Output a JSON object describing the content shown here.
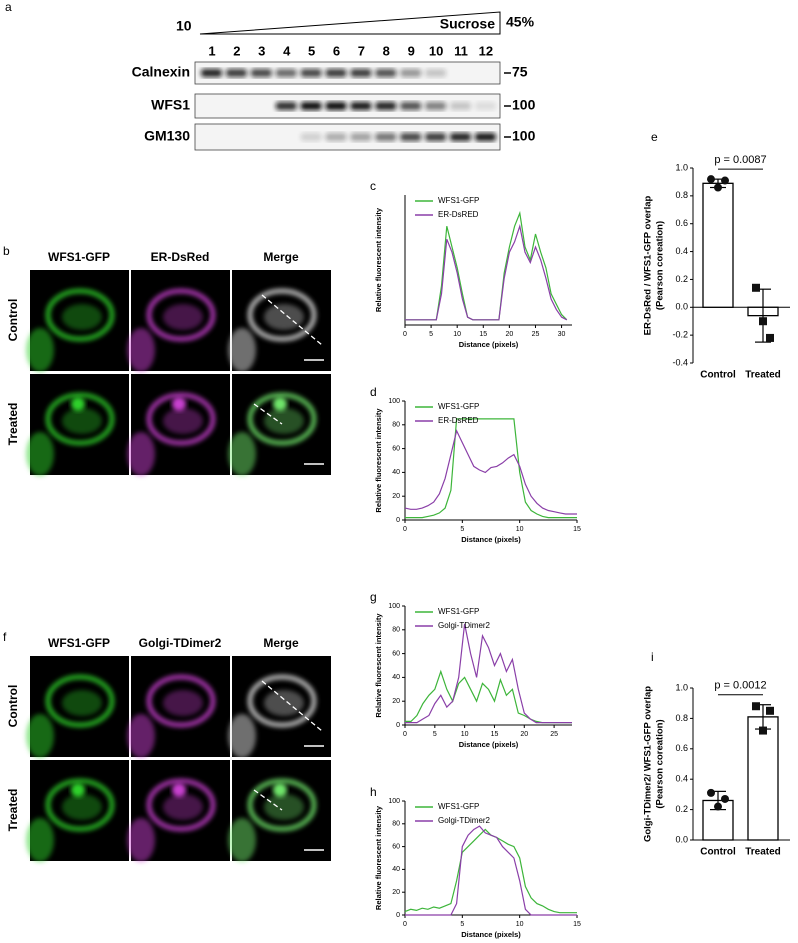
{
  "blot": {
    "label": "a",
    "low": "10",
    "gradient": "Sucrose",
    "high": "45%",
    "lanes": [
      "1",
      "2",
      "3",
      "4",
      "5",
      "6",
      "7",
      "8",
      "9",
      "10",
      "11",
      "12"
    ],
    "rows": [
      {
        "name": "Calnexin",
        "marker": "75"
      },
      {
        "name": "WFS1",
        "marker": "100"
      },
      {
        "name": "GM130",
        "marker": "100"
      }
    ]
  },
  "panel_b": {
    "label": "b",
    "columns": [
      "WFS1-GFP",
      "ER-DsRed",
      "Merge"
    ],
    "rows": [
      "Control",
      "Treated"
    ]
  },
  "panel_f": {
    "label": "f",
    "columns": [
      "WFS1-GFP",
      "Golgi-TDimer2",
      "Merge"
    ],
    "rows": [
      "Control",
      "Treated"
    ]
  },
  "chart_data": [
    {
      "type": "line",
      "panel": "c",
      "xlabel": "Distance (pixels)",
      "ylabel": "Relative fluorescent intensity",
      "x": [
        0,
        1,
        2,
        3,
        4,
        5,
        6,
        7,
        8,
        9,
        10,
        11,
        12,
        13,
        14,
        15,
        16,
        17,
        18,
        19,
        20,
        21,
        22,
        23,
        24,
        25,
        26,
        27,
        28,
        29,
        30,
        31
      ],
      "xlim": [
        0,
        32
      ],
      "xticks": [
        0,
        5,
        10,
        15,
        20,
        25,
        30
      ],
      "ylim": [
        0,
        50
      ],
      "series": [
        {
          "name": "WFS1-GFP",
          "color": "#3db53a",
          "values": [
            2,
            2,
            2,
            2,
            2,
            2,
            2,
            15,
            38,
            30,
            22,
            12,
            3,
            2,
            2,
            2,
            2,
            2,
            2,
            20,
            30,
            38,
            43,
            30,
            25,
            35,
            28,
            22,
            12,
            8,
            4,
            2
          ]
        },
        {
          "name": "ER-DsRED",
          "color": "#8a3fa8",
          "values": [
            2,
            2,
            2,
            2,
            2,
            2,
            2,
            12,
            33,
            28,
            20,
            10,
            3,
            2,
            2,
            2,
            2,
            2,
            2,
            18,
            28,
            32,
            38,
            28,
            24,
            30,
            25,
            18,
            10,
            6,
            3,
            2
          ]
        }
      ]
    },
    {
      "type": "line",
      "panel": "d",
      "xlabel": "Distance (pixels)",
      "ylabel": "Relative fluorescent intensity",
      "x": [
        0,
        0.5,
        1,
        1.5,
        2,
        2.5,
        3,
        3.5,
        4,
        4.5,
        5,
        5.5,
        6,
        6.5,
        7,
        7.5,
        8,
        8.5,
        9,
        9.5,
        10,
        10.5,
        11,
        11.5,
        12,
        12.5,
        13,
        13.5,
        14,
        14.5,
        15
      ],
      "xlim": [
        0,
        15
      ],
      "xticks": [
        0,
        5,
        10,
        15
      ],
      "ylim": [
        0,
        100
      ],
      "yticks": [
        0,
        20,
        40,
        60,
        80,
        100
      ],
      "series": [
        {
          "name": "WFS1-GFP",
          "color": "#3db53a",
          "values": [
            2,
            2,
            2,
            2,
            3,
            4,
            6,
            10,
            25,
            85,
            85,
            85,
            85,
            85,
            85,
            85,
            85,
            85,
            85,
            85,
            40,
            15,
            8,
            5,
            3,
            2,
            2,
            2,
            2,
            2,
            2
          ]
        },
        {
          "name": "ER-DsRED",
          "color": "#8a3fa8",
          "values": [
            10,
            9,
            9,
            10,
            12,
            15,
            22,
            35,
            55,
            75,
            65,
            55,
            45,
            42,
            40,
            44,
            45,
            48,
            52,
            55,
            45,
            30,
            20,
            14,
            10,
            8,
            7,
            6,
            5,
            5,
            5
          ]
        }
      ]
    },
    {
      "type": "bar",
      "panel": "e",
      "ylabel": [
        "ER-DsRed / WFS1-GFP overlap",
        "(Pearson coreation)"
      ],
      "annotation": "p = 0.0087",
      "categories": [
        "Control",
        "Treated"
      ],
      "values": [
        0.89,
        -0.06
      ],
      "errors": [
        0.03,
        0.19
      ],
      "points": [
        [
          0.92,
          0.86,
          0.91
        ],
        [
          0.14,
          -0.1,
          -0.22
        ]
      ],
      "ylim": [
        -0.4,
        1.0
      ],
      "yticks": [
        -0.4,
        -0.2,
        {
          "value": 0,
          "label": "0.0"
        },
        0.2,
        0.4,
        0.6,
        0.8,
        {
          "value": 1,
          "label": "1.0"
        }
      ]
    },
    {
      "type": "line",
      "panel": "g",
      "xlabel": "Distance (pixels)",
      "ylabel": "Relative fluorescent intensity",
      "x": [
        0,
        1,
        2,
        3,
        4,
        5,
        6,
        7,
        8,
        9,
        10,
        11,
        12,
        13,
        14,
        15,
        16,
        17,
        18,
        19,
        20,
        21,
        22,
        23,
        24,
        25,
        26,
        27,
        28
      ],
      "xlim": [
        0,
        28
      ],
      "xticks": [
        0,
        5,
        10,
        15,
        20,
        25
      ],
      "ylim": [
        0,
        100
      ],
      "yticks": [
        0,
        20,
        40,
        60,
        80,
        100
      ],
      "series": [
        {
          "name": "WFS1-GFP",
          "color": "#3db53a",
          "values": [
            3,
            3,
            8,
            18,
            25,
            30,
            45,
            30,
            20,
            35,
            40,
            30,
            20,
            35,
            30,
            20,
            38,
            25,
            30,
            10,
            8,
            5,
            3,
            2,
            2,
            2,
            2,
            2,
            2
          ]
        },
        {
          "name": "Golgi-TDimer2",
          "color": "#8a3fa8",
          "values": [
            2,
            2,
            2,
            5,
            8,
            18,
            25,
            15,
            20,
            40,
            85,
            60,
            40,
            75,
            65,
            50,
            60,
            45,
            55,
            30,
            10,
            5,
            2,
            2,
            2,
            2,
            2,
            2,
            2
          ]
        }
      ]
    },
    {
      "type": "line",
      "panel": "h",
      "xlabel": "Distance (pixels)",
      "ylabel": "Relative fluorescent intensity",
      "x": [
        0,
        0.5,
        1,
        1.5,
        2,
        2.5,
        3,
        3.5,
        4,
        4.5,
        5,
        5.5,
        6,
        6.5,
        7,
        7.5,
        8,
        8.5,
        9,
        9.5,
        10,
        10.5,
        11,
        11.5,
        12,
        12.5,
        13,
        13.5,
        14,
        14.5,
        15
      ],
      "xlim": [
        0,
        15
      ],
      "xticks": [
        0,
        5,
        10,
        15
      ],
      "ylim": [
        0,
        100
      ],
      "yticks": [
        0,
        20,
        40,
        60,
        80,
        100
      ],
      "series": [
        {
          "name": "WFS1-GFP",
          "color": "#3db53a",
          "values": [
            3,
            5,
            4,
            6,
            5,
            7,
            6,
            8,
            10,
            30,
            55,
            60,
            65,
            70,
            75,
            70,
            68,
            65,
            62,
            60,
            50,
            25,
            15,
            10,
            8,
            5,
            3,
            2,
            2,
            2,
            2
          ]
        },
        {
          "name": "Golgi-TDimer2",
          "color": "#8a3fa8",
          "values": [
            0,
            0,
            0,
            0,
            0,
            0,
            0,
            0,
            0,
            10,
            60,
            70,
            75,
            78,
            72,
            70,
            68,
            60,
            55,
            50,
            30,
            5,
            0,
            0,
            0,
            0,
            0,
            0,
            0,
            0,
            0
          ]
        }
      ]
    },
    {
      "type": "bar",
      "panel": "i",
      "ylabel": [
        "Golgi-TDimer2/ WFS1-GFP overlap",
        "(Pearson coreation)"
      ],
      "annotation": "p = 0.0012",
      "categories": [
        "Control",
        "Treated"
      ],
      "values": [
        0.26,
        0.81
      ],
      "errors": [
        0.06,
        0.08
      ],
      "points": [
        [
          0.31,
          0.22,
          0.27
        ],
        [
          0.88,
          0.72,
          0.85
        ]
      ],
      "ylim": [
        0,
        1.0
      ],
      "yticks": [
        {
          "value": 0,
          "label": "0.0"
        },
        0.2,
        0.4,
        0.6,
        0.8,
        {
          "value": 1,
          "label": "1.0"
        }
      ]
    }
  ]
}
